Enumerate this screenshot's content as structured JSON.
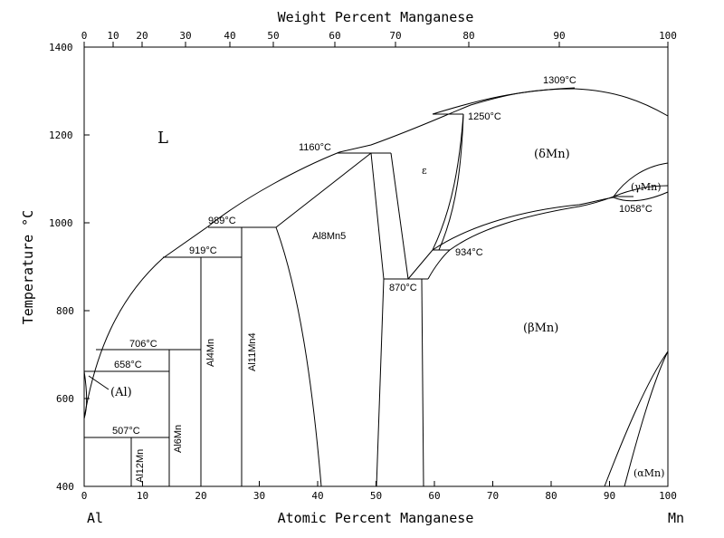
{
  "diagram": {
    "top_axis_title": "Weight Percent Manganese",
    "bottom_axis_title": "Atomic Percent Manganese",
    "y_axis_title": "Temperature °C",
    "left_element": "Al",
    "right_element": "Mn",
    "y_ticks": [
      "1400",
      "1200",
      "1000",
      "800",
      "600",
      "400"
    ],
    "x_ticks": [
      "0",
      "10",
      "20",
      "30",
      "40",
      "50",
      "60",
      "70",
      "80",
      "90",
      "100"
    ],
    "top_ticks": [
      "0",
      "10",
      "20",
      "30",
      "40",
      "50",
      "60",
      "70",
      "80",
      "90",
      "100"
    ],
    "phases": {
      "liquid": "L",
      "al": "(Al)",
      "delta": "(δMn)",
      "gamma": "(γMn)",
      "beta": "(βMn)",
      "alpha": "(αMn)",
      "epsilon": "ε",
      "al8mn5": "Al8Mn5",
      "al11mn4": "Al11Mn4",
      "al4mn": "Al4Mn",
      "al6mn": "Al6Mn",
      "al12mn": "Al12Mn"
    },
    "temps": {
      "t1309": "1309°C",
      "t1250": "1250°C",
      "t1160": "1160°C",
      "t989": "989°C",
      "t919": "919°C",
      "t934": "934°C",
      "t870": "870°C",
      "t1058": "1058°C",
      "t706": "706°C",
      "t658": "658°C",
      "t507": "507°C"
    }
  }
}
